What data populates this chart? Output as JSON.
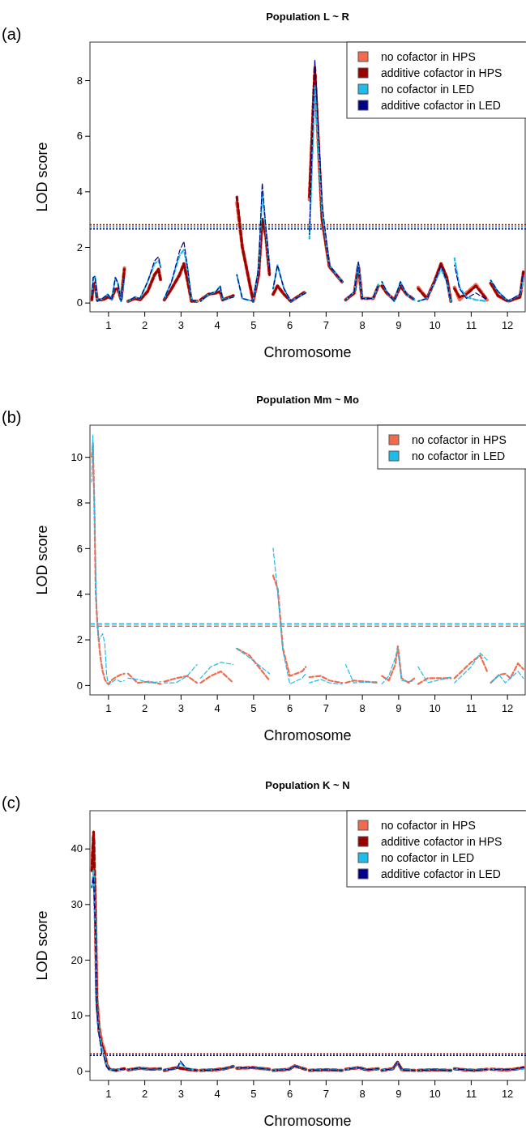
{
  "chart_data": [
    {
      "type": "line",
      "title": "Population L ~ R",
      "xlabel": "Chromosome",
      "ylabel": "LOD score",
      "annotations": [
        "(a)"
      ],
      "legend": "top right",
      "line_style": "dashed",
      "xlim": [
        0.5,
        12.5
      ],
      "ylim": [
        -0.33,
        9.37
      ],
      "yticks": [
        0,
        2,
        4,
        6,
        8
      ],
      "xticks": [
        1,
        2,
        3,
        4,
        5,
        6,
        7,
        8,
        9,
        10,
        11,
        12
      ],
      "x": [
        0.55,
        0.59,
        0.64,
        0.7,
        0.85,
        0.99,
        1.1,
        1.2,
        1.27,
        1.36,
        1.4,
        1.45,
        1.5,
        1.55,
        1.74,
        1.88,
        2.09,
        2.28,
        2.39,
        2.45,
        2.5,
        2.55,
        2.75,
        2.97,
        3.09,
        3.19,
        3.3,
        3.45,
        3.5,
        3.55,
        3.77,
        3.98,
        4.09,
        4.16,
        4.45,
        4.5,
        4.55,
        4.7,
        5.0,
        5.15,
        5.25,
        5.35,
        5.45,
        5.5,
        5.55,
        5.67,
        5.85,
        6.04,
        6.45,
        6.5,
        6.55,
        6.7,
        6.9,
        7.1,
        7.45,
        7.5,
        7.55,
        7.79,
        7.9,
        8.0,
        8.31,
        8.45,
        8.5,
        8.55,
        8.68,
        8.89,
        9.06,
        9.23,
        9.45,
        9.5,
        9.55,
        9.79,
        10.01,
        10.18,
        10.34,
        10.45,
        10.5,
        10.55,
        10.69,
        10.88,
        11.14,
        11.45,
        11.5,
        11.55,
        11.75,
        12.03,
        12.36,
        12.45
      ],
      "series": [
        {
          "name": "no cofactor in HPS",
          "color": "#f26b4f",
          "values": [
            0.1,
            0.6,
            0.7,
            0.1,
            0.1,
            0.2,
            0.15,
            0.5,
            0.5,
            0.1,
            0.6,
            1.25,
            null,
            0.05,
            0.15,
            0.1,
            0.4,
            1.0,
            1.2,
            0.8,
            null,
            0.1,
            0.5,
            1.0,
            1.4,
            0.8,
            0.05,
            0.05,
            null,
            0.1,
            0.3,
            0.35,
            0.4,
            0.1,
            0.25,
            null,
            3.6,
            2.0,
            0.05,
            1.0,
            3.0,
            2.4,
            1.0,
            null,
            0.3,
            0.6,
            0.3,
            0.05,
            0.4,
            null,
            3.7,
            8.2,
            3.0,
            1.3,
            0.75,
            null,
            0.1,
            0.35,
            1.35,
            0.15,
            0.15,
            0.6,
            null,
            0.6,
            0.35,
            0.1,
            0.6,
            0.3,
            0.1,
            null,
            0.55,
            0.15,
            0.8,
            1.4,
            0.9,
            0.05,
            null,
            0.55,
            0.1,
            0.35,
            0.65,
            0.1,
            null,
            0.7,
            0.25,
            0.05,
            0.2,
            1.1
          ]
        },
        {
          "name": "additive cofactor in HPS",
          "color": "#990000",
          "values": [
            0.1,
            0.6,
            0.7,
            0.1,
            0.1,
            0.2,
            0.15,
            0.5,
            0.5,
            0.1,
            0.6,
            1.2,
            null,
            0.05,
            0.15,
            0.1,
            0.4,
            1.0,
            1.2,
            0.8,
            null,
            0.1,
            0.5,
            1.0,
            1.4,
            0.8,
            0.05,
            0.05,
            null,
            0.1,
            0.3,
            0.35,
            0.4,
            0.1,
            0.25,
            null,
            3.8,
            2.0,
            0.05,
            1.0,
            3.0,
            2.4,
            1.0,
            null,
            0.3,
            0.6,
            0.3,
            0.05,
            0.4,
            null,
            3.8,
            8.5,
            3.0,
            1.3,
            0.75,
            null,
            0.1,
            0.35,
            1.35,
            0.15,
            0.15,
            0.6,
            null,
            0.6,
            0.35,
            0.1,
            0.6,
            0.3,
            0.1,
            null,
            0.5,
            0.15,
            0.8,
            1.4,
            0.9,
            0.05,
            null,
            0.5,
            0.2,
            0.3,
            0.6,
            0.1,
            null,
            0.7,
            0.25,
            0.05,
            0.2,
            1.1
          ]
        },
        {
          "name": "no cofactor in LED",
          "color": "#1ebbeb",
          "values": [
            0.3,
            0.9,
            0.95,
            0.05,
            0.15,
            0.3,
            0.1,
            0.9,
            0.7,
            0.05,
            0.5,
            0.9,
            null,
            0.05,
            0.2,
            0.15,
            0.75,
            1.4,
            1.5,
            1.3,
            null,
            0.15,
            0.75,
            1.7,
            1.9,
            1.25,
            0.1,
            0.05,
            null,
            0.05,
            0.3,
            0.4,
            0.6,
            0.1,
            0.2,
            null,
            1.0,
            0.15,
            0.05,
            1.25,
            4.0,
            2.6,
            1.25,
            null,
            0.5,
            1.35,
            0.5,
            0.05,
            0.35,
            null,
            2.3,
            7.8,
            3.3,
            1.35,
            0.75,
            null,
            0.1,
            0.4,
            1.45,
            0.15,
            0.15,
            0.65,
            null,
            0.75,
            0.4,
            0.05,
            0.75,
            0.3,
            0.1,
            null,
            0.05,
            0.15,
            0.75,
            1.2,
            0.75,
            0.05,
            null,
            1.6,
            0.55,
            0.2,
            0.1,
            0.05,
            null,
            0.8,
            0.4,
            0.05,
            0.3,
            0.9
          ]
        },
        {
          "name": "additive cofactor in LED",
          "color": "#00008b",
          "values": [
            0.15,
            0.9,
            0.95,
            0.05,
            0.15,
            0.3,
            0.1,
            0.9,
            0.7,
            0.05,
            0.5,
            0.95,
            null,
            0.05,
            0.2,
            0.15,
            0.75,
            1.5,
            1.65,
            1.25,
            null,
            0.15,
            0.75,
            1.85,
            2.2,
            1.25,
            0.1,
            0.05,
            null,
            0.05,
            0.3,
            0.4,
            0.6,
            0.1,
            0.2,
            null,
            1.0,
            0.15,
            0.05,
            1.25,
            4.3,
            2.7,
            1.25,
            null,
            0.5,
            1.35,
            0.5,
            0.05,
            0.35,
            null,
            2.45,
            8.75,
            3.55,
            1.35,
            0.75,
            null,
            0.1,
            0.4,
            1.45,
            0.15,
            0.15,
            0.65,
            null,
            0.75,
            0.4,
            0.05,
            0.75,
            0.3,
            0.1,
            null,
            0.05,
            0.15,
            0.75,
            1.35,
            0.75,
            0.05,
            null,
            1.35,
            0.5,
            0.15,
            0.35,
            0.1,
            null,
            0.8,
            0.4,
            0.05,
            0.3,
            1.1
          ]
        }
      ],
      "ref_lines": [
        {
          "axis": "y",
          "value": 2.8,
          "color": "#990000",
          "line_style": "dotted"
        },
        {
          "axis": "y",
          "value": 2.75,
          "color": "#f26b4f",
          "line_style": "dotted"
        },
        {
          "axis": "y",
          "value": 2.7,
          "color": "#1ebbeb",
          "line_style": "dotted"
        },
        {
          "axis": "y",
          "value": 2.65,
          "color": "#00008b",
          "line_style": "dotted"
        }
      ]
    },
    {
      "type": "line",
      "title": "Population Mm ~ Mo",
      "xlabel": "Chromosome",
      "ylabel": "LOD score",
      "annotations": [
        "(b)"
      ],
      "legend": "top right",
      "line_style": "dashed",
      "xlim": [
        0.5,
        12.5
      ],
      "ylim": [
        -0.43,
        11.39
      ],
      "yticks": [
        0,
        2,
        4,
        6,
        8,
        10
      ],
      "xticks": [
        1,
        2,
        3,
        4,
        5,
        6,
        7,
        8,
        9,
        10,
        11,
        12
      ],
      "x": [
        0.55,
        0.58,
        0.62,
        0.66,
        0.7,
        0.74,
        0.79,
        0.85,
        0.91,
        0.96,
        1.01,
        1.12,
        1.22,
        1.34,
        1.45,
        1.5,
        1.55,
        1.81,
        2.13,
        2.45,
        2.5,
        2.55,
        2.87,
        3.18,
        3.45,
        3.5,
        3.55,
        3.83,
        4.11,
        4.45,
        4.5,
        4.55,
        4.9,
        5.45,
        5.5,
        5.55,
        5.68,
        5.82,
        6.01,
        6.35,
        6.45,
        6.5,
        6.55,
        6.87,
        7.1,
        7.45,
        7.5,
        7.55,
        7.77,
        8.45,
        8.5,
        8.55,
        8.74,
        8.92,
        8.99,
        9.09,
        9.29,
        9.45,
        9.5,
        9.55,
        9.81,
        10.45,
        10.5,
        10.55,
        11.01,
        11.26,
        11.45,
        11.5,
        11.55,
        11.78,
        11.95,
        12.09,
        12.3,
        12.45
      ],
      "series": [
        {
          "name": "no cofactor in HPS",
          "color": "#f26b4f",
          "values": [
            10.0,
            10.6,
            8.0,
            4.0,
            2.8,
            2.0,
            1.2,
            0.6,
            0.25,
            0.1,
            0.05,
            0.25,
            0.35,
            0.45,
            0.5,
            null,
            0.5,
            0.1,
            0.15,
            0.05,
            null,
            0.15,
            0.3,
            0.4,
            0.1,
            null,
            0.1,
            0.4,
            0.6,
            0.1,
            null,
            1.6,
            1.3,
            0.2,
            null,
            4.8,
            4.2,
            1.6,
            0.4,
            0.6,
            0.8,
            null,
            0.35,
            0.4,
            0.2,
            0.1,
            null,
            0.1,
            0.2,
            0.1,
            null,
            0.4,
            0.2,
            0.9,
            1.7,
            0.3,
            0.1,
            0.3,
            null,
            0.05,
            0.3,
            0.3,
            null,
            0.3,
            1.0,
            1.3,
            0.6,
            null,
            0.1,
            0.45,
            0.5,
            0.3,
            0.95,
            0.7
          ]
        },
        {
          "name": "no cofactor in LED",
          "color": "#1ebbeb",
          "values": [
            8.9,
            10.95,
            7.85,
            4.75,
            2.65,
            1.95,
            2.1,
            2.25,
            1.8,
            0.45,
            0.0,
            0.15,
            0.25,
            0.15,
            0.2,
            null,
            0.3,
            0.25,
            0.1,
            0.15,
            null,
            0.1,
            0.1,
            0.4,
            0.9,
            null,
            0.3,
            0.8,
            1.0,
            0.9,
            null,
            1.6,
            1.2,
            0.5,
            null,
            6.0,
            4.0,
            1.5,
            0.05,
            0.3,
            0.5,
            null,
            0.1,
            0.25,
            0.1,
            0.05,
            null,
            0.9,
            0.1,
            0.15,
            null,
            0.05,
            0.4,
            1.2,
            1.6,
            0.2,
            0.15,
            0.2,
            null,
            0.8,
            0.1,
            0.35,
            null,
            0.1,
            0.8,
            1.4,
            1.1,
            null,
            0.1,
            0.45,
            0.1,
            0.3,
            0.6,
            0.3
          ]
        }
      ],
      "ref_lines": [
        {
          "axis": "y",
          "value": 2.68,
          "color": "#1ebbeb",
          "line_style": "dashed"
        },
        {
          "axis": "y",
          "value": 2.58,
          "color": "#f26b4f",
          "line_style": "dashed"
        }
      ]
    },
    {
      "type": "line",
      "title": "Population K ~ N",
      "xlabel": "Chromosome",
      "ylabel": "LOD score",
      "annotations": [
        "(c)"
      ],
      "legend": "top right",
      "line_style": "dashed",
      "xlim": [
        0.5,
        12.5
      ],
      "ylim": [
        -1.7,
        46.8
      ],
      "yticks": [
        0,
        10,
        20,
        30,
        40
      ],
      "xticks": [
        1,
        2,
        3,
        4,
        5,
        6,
        7,
        8,
        9,
        10,
        11,
        12
      ],
      "x": [
        0.55,
        0.6,
        0.65,
        0.69,
        0.75,
        0.83,
        0.89,
        0.96,
        1.04,
        1.21,
        1.45,
        1.5,
        1.55,
        1.87,
        2.17,
        2.45,
        2.5,
        2.55,
        2.9,
        2.99,
        3.15,
        3.45,
        3.5,
        3.55,
        3.94,
        4.21,
        4.45,
        4.5,
        4.55,
        4.98,
        5.45,
        5.5,
        5.55,
        5.99,
        6.14,
        6.45,
        6.5,
        6.55,
        6.99,
        7.45,
        7.5,
        7.55,
        7.92,
        8.13,
        8.45,
        8.5,
        8.55,
        8.85,
        8.98,
        9.1,
        9.45,
        9.5,
        9.55,
        9.95,
        10.45,
        10.5,
        10.55,
        10.83,
        11.13,
        11.45,
        11.5,
        11.55,
        11.93,
        12.2,
        12.45
      ],
      "series": [
        {
          "name": "no cofactor in HPS",
          "color": "#f26b4f",
          "values": [
            37,
            42,
            28,
            13,
            8,
            5,
            4,
            1.2,
            0.3,
            0.1,
            0.4,
            null,
            0.2,
            0.5,
            0.3,
            0.4,
            null,
            0.1,
            0.6,
            0.5,
            0.3,
            0.1,
            null,
            0.1,
            0.2,
            0.4,
            0.8,
            null,
            0.5,
            0.6,
            0.3,
            null,
            0.1,
            0.3,
            0.9,
            0.3,
            null,
            0.1,
            0.2,
            0.1,
            null,
            0.3,
            0.6,
            0.2,
            0.4,
            null,
            0.1,
            0.4,
            1.5,
            0.2,
            0.1,
            null,
            0.1,
            0.2,
            0.1,
            null,
            0.4,
            0.2,
            0.1,
            0.3,
            null,
            0.3,
            0.2,
            0.3,
            0.6
          ]
        },
        {
          "name": "additive cofactor in HPS",
          "color": "#990000",
          "values": [
            36,
            43,
            28,
            12,
            7,
            4.5,
            3.5,
            1,
            0.3,
            0.1,
            0.4,
            null,
            0.2,
            0.5,
            0.3,
            0.4,
            null,
            0.1,
            0.6,
            0.5,
            0.3,
            0.1,
            null,
            0.1,
            0.2,
            0.4,
            0.8,
            null,
            0.5,
            0.6,
            0.3,
            null,
            0.1,
            0.3,
            0.9,
            0.3,
            null,
            0.1,
            0.2,
            0.1,
            null,
            0.3,
            0.6,
            0.2,
            0.4,
            null,
            0.1,
            0.4,
            1.6,
            0.2,
            0.1,
            null,
            0.1,
            0.2,
            0.1,
            null,
            0.4,
            0.2,
            0.1,
            0.3,
            null,
            0.3,
            0.2,
            0.3,
            0.6
          ]
        },
        {
          "name": "no cofactor in LED",
          "color": "#1ebbeb",
          "values": [
            33,
            36,
            26,
            11,
            7,
            4,
            3,
            1,
            0.2,
            0.1,
            0.3,
            null,
            0.2,
            0.5,
            0.3,
            0.4,
            null,
            0.2,
            0.4,
            1.5,
            0.5,
            0.1,
            null,
            0.1,
            0.2,
            0.4,
            0.8,
            null,
            0.5,
            0.6,
            0.3,
            null,
            0.1,
            0.3,
            0.9,
            0.3,
            null,
            0.1,
            0.2,
            0.1,
            null,
            0.3,
            0.6,
            0.2,
            0.4,
            null,
            0.1,
            0.4,
            1.5,
            0.2,
            0.1,
            null,
            0.1,
            0.2,
            0.1,
            null,
            0.4,
            0.2,
            0.1,
            0.3,
            null,
            0.3,
            0.2,
            0.3,
            0.4
          ]
        },
        {
          "name": "additive cofactor in LED",
          "color": "#00008b",
          "values": [
            33,
            35,
            25,
            11,
            6.5,
            3,
            2.5,
            0.8,
            0.2,
            0.1,
            0.4,
            null,
            0.2,
            0.5,
            0.3,
            0.4,
            null,
            0.2,
            0.4,
            1.8,
            0.5,
            0.1,
            null,
            0.1,
            0.2,
            0.4,
            0.8,
            null,
            0.5,
            0.6,
            0.3,
            null,
            0.1,
            0.3,
            0.9,
            0.3,
            null,
            0.1,
            0.2,
            0.1,
            null,
            0.3,
            0.6,
            0.2,
            0.4,
            null,
            0.1,
            0.4,
            1.6,
            0.2,
            0.1,
            null,
            0.1,
            0.2,
            0.1,
            null,
            0.4,
            0.2,
            0.1,
            0.3,
            null,
            0.3,
            0.2,
            0.3,
            0.6
          ]
        }
      ],
      "ref_lines": [
        {
          "axis": "y",
          "value": 3.1,
          "color": "#990000",
          "line_style": "dotted"
        },
        {
          "axis": "y",
          "value": 3.0,
          "color": "#f26b4f",
          "line_style": "dotted"
        },
        {
          "axis": "y",
          "value": 2.9,
          "color": "#1ebbeb",
          "line_style": "dotted"
        },
        {
          "axis": "y",
          "value": 2.8,
          "color": "#00008b",
          "line_style": "dotted"
        }
      ]
    }
  ]
}
